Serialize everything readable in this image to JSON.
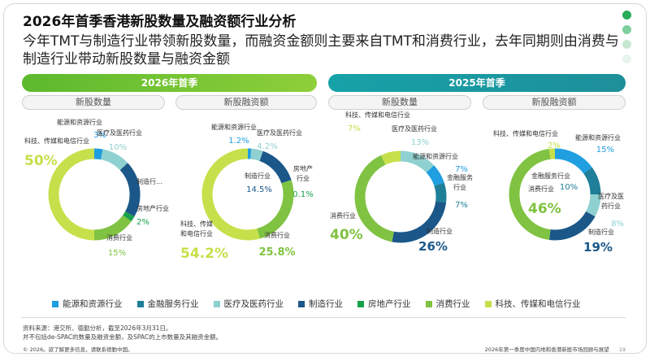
{
  "title": "2026年首季香港新股数量及融资额行业分析",
  "subtitle": "今年TMT与制造行业带领新股数量，而融资金额则主要来自TMT和消费行业，去年同期则由消费与制造行业带动新股数量与融资金额",
  "periods": [
    "2026年首季",
    "2025年首季"
  ],
  "metrics": [
    "新股数量",
    "新股融资额",
    "新股数量",
    "新股融资额"
  ],
  "colors": {
    "能源和资源行业": "#1f9ee0",
    "金融服务行业": "#1f7f98",
    "医疗及医药行业": "#8fd0d0",
    "制造行业": "#1b5789",
    "房地产行业": "#18a04b",
    "消费行业": "#80c342",
    "科技、传媒和电信行业": "#c5e04a"
  },
  "chart_data": [
    {
      "type": "pie",
      "period": "2026年首季",
      "metric": "新股数量",
      "slices": [
        {
          "label": "能源和资源行业",
          "value": 3,
          "display": "3%"
        },
        {
          "label": "医疗及医药行业",
          "value": 10,
          "display": "10%"
        },
        {
          "label": "制造行业",
          "value": 20,
          "display": "制造行业"
        },
        {
          "label": "房地产行业",
          "value": 2,
          "display": "2%"
        },
        {
          "label": "消费行业",
          "value": 15,
          "display": "15%"
        },
        {
          "label": "科技、传媒和电信行业",
          "value": 50,
          "display": "50%"
        }
      ]
    },
    {
      "type": "pie",
      "period": "2026年首季",
      "metric": "新股融资额",
      "slices": [
        {
          "label": "能源和资源行业",
          "value": 1.2,
          "display": "1.2%"
        },
        {
          "label": "医疗及医药行业",
          "value": 4.2,
          "display": "4.2%"
        },
        {
          "label": "制造行业",
          "value": 14.5,
          "display": "14.5%"
        },
        {
          "label": "房地产行业",
          "value": 0.1,
          "display": "0.1%"
        },
        {
          "label": "消费行业",
          "value": 25.8,
          "display": "25.8%"
        },
        {
          "label": "科技、传媒和电信行业",
          "value": 54.2,
          "display": "54.2%"
        }
      ]
    },
    {
      "type": "pie",
      "period": "2025年首季",
      "metric": "新股数量",
      "slices": [
        {
          "label": "医疗及医药行业",
          "value": 13,
          "display": "13%"
        },
        {
          "label": "能源和资源行业",
          "value": 7,
          "display": "7%"
        },
        {
          "label": "金融服务行业",
          "value": 7,
          "display": "7%"
        },
        {
          "label": "制造行业",
          "value": 26,
          "display": "26%"
        },
        {
          "label": "消费行业",
          "value": 40,
          "display": "40%"
        },
        {
          "label": "科技、传媒和电信行业",
          "value": 7,
          "display": "7%"
        }
      ]
    },
    {
      "type": "pie",
      "period": "2025年首季",
      "metric": "新股融资额",
      "slices": [
        {
          "label": "能源和资源行业",
          "value": 15,
          "display": "15%"
        },
        {
          "label": "金融服务行业",
          "value": 10,
          "display": "10%"
        },
        {
          "label": "医疗及医药行业",
          "value": 8,
          "display": "8%"
        },
        {
          "label": "制造行业",
          "value": 19,
          "display": "19%"
        },
        {
          "label": "消费行业",
          "value": 46,
          "display": "46%"
        },
        {
          "label": "科技、传媒和电信行业",
          "value": 2,
          "display": "2%"
        }
      ]
    }
  ],
  "legend": [
    "能源和资源行业",
    "金融服务行业",
    "医疗及医药行业",
    "制造行业",
    "房地产行业",
    "消费行业",
    "科技、传媒和电信行业"
  ],
  "source_lines": [
    "资料来源：港交所、德勤分析，截至2026年3月31日。",
    "并不包括de-SPAC的数量及融资金额，及SPAC的上市数量及其融资金额。"
  ],
  "copyright": "© 2026。欲了解更多信息，请联系德勤中国。",
  "footer_title": "2026年第一季度中国内地和香港新股市场回顾与展望",
  "page_number": "19"
}
